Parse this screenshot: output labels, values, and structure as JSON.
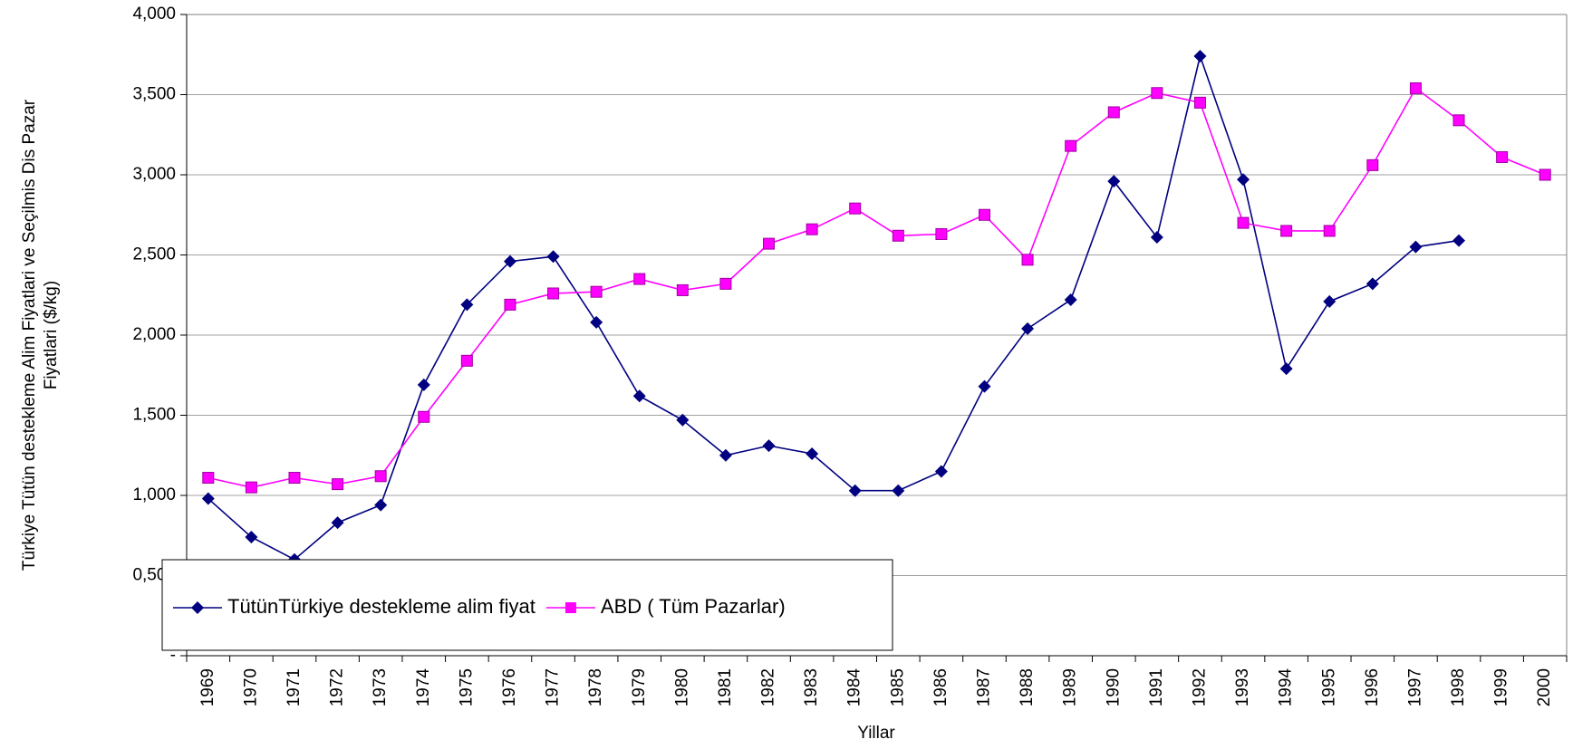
{
  "chart_data": {
    "type": "line",
    "y_label": "Türkiye Tütün destekleme Alim Fiyatlari ve Seçilmis Dis Pazar Fiyatlari ($/kg)",
    "x_label": "Yillar",
    "categories": [
      "1969",
      "1970",
      "1971",
      "1972",
      "1973",
      "1974",
      "1975",
      "1976",
      "1977",
      "1978",
      "1979",
      "1980",
      "1981",
      "1982",
      "1983",
      "1984",
      "1985",
      "1986",
      "1987",
      "1988",
      "1989",
      "1990",
      "1991",
      "1992",
      "1993",
      "1994",
      "1995",
      "1996",
      "1997",
      "1998",
      "1999",
      "2000"
    ],
    "series": [
      {
        "name": "TütünTürkiye destekleme alim fiyat",
        "color": "#000080",
        "marker": "diamond",
        "values": [
          980,
          740,
          600,
          830,
          940,
          1690,
          2190,
          2460,
          2490,
          2080,
          1620,
          1470,
          1250,
          1310,
          1260,
          1030,
          1030,
          1150,
          1680,
          2040,
          2220,
          2960,
          2610,
          3740,
          2970,
          1790,
          2210,
          2320,
          2550,
          2590,
          null,
          null
        ]
      },
      {
        "name": "ABD ( Tüm Pazarlar)",
        "color": "#ff00ff",
        "marker": "square",
        "values": [
          1110,
          1050,
          1110,
          1070,
          1120,
          1490,
          1840,
          2190,
          2260,
          2270,
          2350,
          2280,
          2320,
          2570,
          2660,
          2790,
          2620,
          2630,
          2750,
          2470,
          3180,
          3390,
          3510,
          3450,
          2700,
          2650,
          2650,
          3060,
          3540,
          3340,
          3110,
          3000
        ]
      }
    ],
    "ylim": [
      0,
      4000
    ],
    "yticks": [
      {
        "value": 0,
        "label": "-"
      },
      {
        "value": 500,
        "label": "0,500"
      },
      {
        "value": 1000,
        "label": "1,000"
      },
      {
        "value": 1500,
        "label": "1,500"
      },
      {
        "value": 2000,
        "label": "2,000"
      },
      {
        "value": 2500,
        "label": "2,500"
      },
      {
        "value": 3000,
        "label": "3,000"
      },
      {
        "value": 3500,
        "label": "3,500"
      },
      {
        "value": 4000,
        "label": "4,000"
      }
    ],
    "grid": true,
    "legend": "lower left"
  }
}
